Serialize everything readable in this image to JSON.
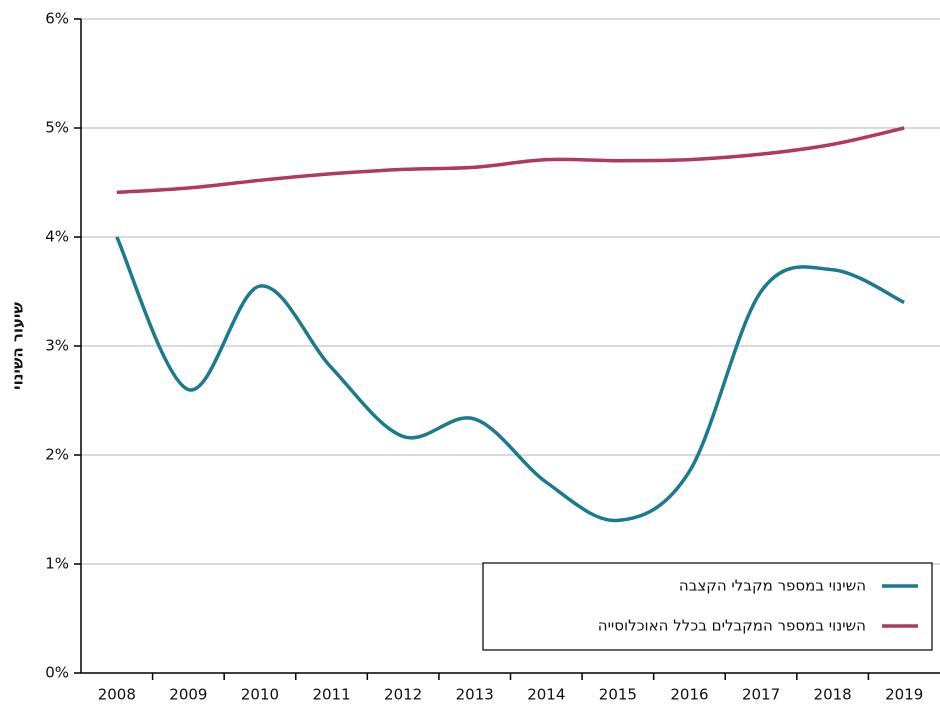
{
  "chart_data": {
    "type": "line",
    "y_label": "שיעור השינוי",
    "categories": [
      "2008",
      "2009",
      "2010",
      "2011",
      "2012",
      "2013",
      "2014",
      "2015",
      "2016",
      "2017",
      "2018",
      "2019"
    ],
    "series": [
      {
        "name": "השינוי במספר מקבלי הקצבה",
        "color": "#1a7a8e",
        "values": [
          4.0,
          2.6,
          3.55,
          2.8,
          2.17,
          2.33,
          1.75,
          1.4,
          1.85,
          3.5,
          3.7,
          3.4
        ]
      },
      {
        "name": "השינוי במספר המקבלים בכלל האוכלוסייה",
        "color": "#b03a5b",
        "values": [
          4.41,
          4.45,
          4.52,
          4.58,
          4.62,
          4.64,
          4.71,
          4.7,
          4.71,
          4.76,
          4.85,
          5.0
        ]
      }
    ],
    "ylim": [
      0,
      6
    ],
    "yticks": [
      {
        "value": 0,
        "label": "0%"
      },
      {
        "value": 1,
        "label": "1%"
      },
      {
        "value": 2,
        "label": "2%"
      },
      {
        "value": 3,
        "label": "3%"
      },
      {
        "value": 4,
        "label": "4%"
      },
      {
        "value": 5,
        "label": "5%"
      },
      {
        "value": 6,
        "label": "6%"
      }
    ],
    "grid": true,
    "legend": "lower right"
  }
}
